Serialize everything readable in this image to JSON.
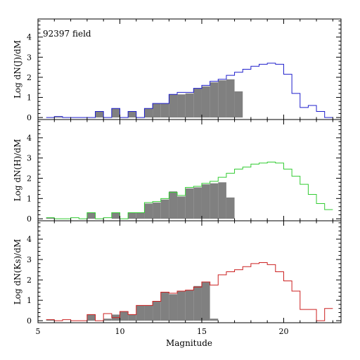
{
  "figure": {
    "annotation": "92397 field",
    "xlabel": "Magnitude",
    "xlim": [
      5,
      23.5
    ],
    "xticks": [
      5,
      10,
      15,
      20
    ]
  },
  "chart_data": [
    {
      "type": "bar",
      "band": "J",
      "ylabel": "Log dN(J)/dM",
      "ylim": [
        -0.1,
        4.9
      ],
      "yticks": [
        0,
        1,
        2,
        3,
        4
      ],
      "bin_width": 0.5,
      "grid": false,
      "series": [
        {
          "label_shown": false,
          "style": "filled-histogram",
          "color": "#808080",
          "x": [
            5.75,
            6.25,
            6.75,
            7.25,
            7.75,
            8.25,
            8.75,
            9.25,
            9.75,
            10.25,
            10.75,
            11.25,
            11.75,
            12.25,
            12.75,
            13.25,
            13.75,
            14.25,
            14.75,
            15.25,
            15.75,
            16.25,
            16.75,
            17.25
          ],
          "y": [
            0,
            0.05,
            0,
            0,
            0,
            0,
            0.3,
            0,
            0.45,
            0,
            0.3,
            0,
            0.45,
            0.7,
            0.7,
            1.15,
            1.15,
            1.2,
            1.45,
            1.55,
            1.75,
            1.85,
            1.9,
            1.3
          ]
        },
        {
          "label_shown": false,
          "style": "step-outline",
          "color": "#1f1fcc",
          "x": [
            5.75,
            6.25,
            6.75,
            7.25,
            7.75,
            8.25,
            8.75,
            9.25,
            9.75,
            10.25,
            10.75,
            11.25,
            11.75,
            12.25,
            12.75,
            13.25,
            13.75,
            14.25,
            14.75,
            15.25,
            15.75,
            16.25,
            16.75,
            17.25,
            17.75,
            18.25,
            18.75,
            19.25,
            19.75,
            20.25,
            20.75,
            21.25,
            21.75,
            22.25,
            22.75
          ],
          "y": [
            0,
            0.05,
            0,
            0,
            0,
            0,
            0.3,
            0,
            0.45,
            0,
            0.3,
            0,
            0.45,
            0.7,
            0.7,
            1.15,
            1.25,
            1.25,
            1.45,
            1.6,
            1.8,
            1.9,
            2.1,
            2.25,
            2.4,
            2.55,
            2.65,
            2.7,
            2.65,
            2.15,
            1.2,
            0.5,
            0.6,
            0.3,
            0
          ]
        }
      ]
    },
    {
      "type": "bar",
      "band": "H",
      "ylabel": "Log dN(H)/dM",
      "ylim": [
        -0.1,
        4.9
      ],
      "yticks": [
        0,
        1,
        2,
        3,
        4
      ],
      "bin_width": 0.5,
      "grid": false,
      "series": [
        {
          "label_shown": false,
          "style": "filled-histogram",
          "color": "#808080",
          "x": [
            5.75,
            6.25,
            6.75,
            7.25,
            7.75,
            8.25,
            8.75,
            9.25,
            9.75,
            10.25,
            10.75,
            11.25,
            11.75,
            12.25,
            12.75,
            13.25,
            13.75,
            14.25,
            14.75,
            15.25,
            15.75,
            16.25,
            16.75
          ],
          "y": [
            0.05,
            0,
            0,
            0,
            0,
            0.3,
            0,
            0,
            0.3,
            0,
            0.3,
            0.3,
            0.75,
            0.8,
            0.95,
            1.35,
            1.1,
            1.5,
            1.55,
            1.7,
            1.75,
            1.8,
            1.05
          ]
        },
        {
          "label_shown": false,
          "style": "step-outline",
          "color": "#33cc33",
          "x": [
            5.75,
            6.25,
            6.75,
            7.25,
            7.75,
            8.25,
            8.75,
            9.25,
            9.75,
            10.25,
            10.75,
            11.25,
            11.75,
            12.25,
            12.75,
            13.25,
            13.75,
            14.25,
            14.75,
            15.25,
            15.75,
            16.25,
            16.75,
            17.25,
            17.75,
            18.25,
            18.75,
            19.25,
            19.75,
            20.25,
            20.75,
            21.25,
            21.75,
            22.25,
            22.75
          ],
          "y": [
            0.05,
            0,
            0,
            0.05,
            0,
            0.3,
            0,
            0.05,
            0.3,
            0,
            0.3,
            0.3,
            0.8,
            0.85,
            1.0,
            1.3,
            1.15,
            1.55,
            1.6,
            1.75,
            1.85,
            2.05,
            2.25,
            2.45,
            2.55,
            2.7,
            2.75,
            2.8,
            2.75,
            2.45,
            2.1,
            1.7,
            1.2,
            0.75,
            0.45
          ]
        }
      ]
    },
    {
      "type": "bar",
      "band": "Ks",
      "ylabel": "Log dN(Ks)/dM",
      "ylim": [
        -0.1,
        4.9
      ],
      "yticks": [
        0,
        1,
        2,
        3,
        4
      ],
      "bin_width": 0.5,
      "grid": false,
      "series": [
        {
          "label_shown": false,
          "style": "filled-histogram",
          "color": "#808080",
          "x": [
            5.75,
            6.25,
            6.75,
            7.25,
            7.75,
            8.25,
            8.75,
            9.25,
            9.75,
            10.25,
            10.75,
            11.25,
            11.75,
            12.25,
            12.75,
            13.25,
            13.75,
            14.25,
            14.75,
            15.25,
            15.75
          ],
          "y": [
            0.05,
            0,
            0,
            0,
            0,
            0.3,
            0,
            0.1,
            0.3,
            0.45,
            0.3,
            0.75,
            0.75,
            0.95,
            1.4,
            1.3,
            1.45,
            1.5,
            1.7,
            1.9,
            0.1
          ]
        },
        {
          "label_shown": false,
          "style": "step-outline",
          "color": "#cc2020",
          "x": [
            5.75,
            6.25,
            6.75,
            7.25,
            7.75,
            8.25,
            8.75,
            9.25,
            9.75,
            10.25,
            10.75,
            11.25,
            11.75,
            12.25,
            12.75,
            13.25,
            13.75,
            14.25,
            14.75,
            15.25,
            15.75,
            16.25,
            16.75,
            17.25,
            17.75,
            18.25,
            18.75,
            19.25,
            19.75,
            20.25,
            20.75,
            21.25,
            21.75,
            22.25,
            22.75
          ],
          "y": [
            0.05,
            0,
            0.05,
            0,
            0,
            0.3,
            0,
            0.35,
            0.15,
            0.45,
            0.3,
            0.75,
            0.75,
            0.95,
            1.4,
            1.35,
            1.45,
            1.5,
            1.65,
            1.9,
            1.75,
            2.25,
            2.4,
            2.5,
            2.65,
            2.8,
            2.85,
            2.75,
            2.4,
            1.95,
            1.45,
            0.55,
            0.55,
            0,
            0.6
          ]
        }
      ]
    }
  ]
}
